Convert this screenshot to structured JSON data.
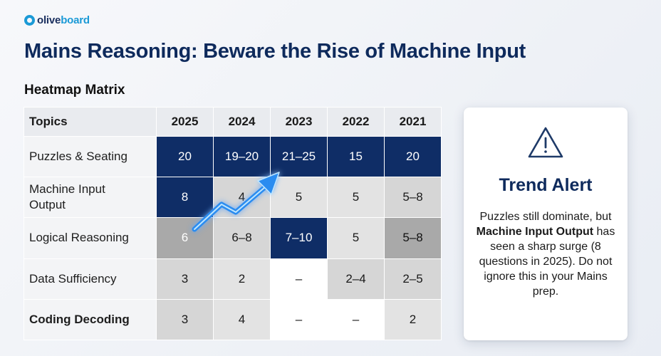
{
  "brand": {
    "name_part1": "olive",
    "name_part2": "board"
  },
  "title": "Mains Reasoning: Beware the Rise of Machine Input",
  "subtitle": "Heatmap Matrix",
  "chart_data": {
    "type": "table",
    "columns": [
      "Topics",
      "2025",
      "2024",
      "2023",
      "2022",
      "2021"
    ],
    "rows": [
      {
        "topic": "Puzzles & Seating",
        "values": [
          "20",
          "19–20",
          "21–25",
          "15",
          "20"
        ]
      },
      {
        "topic": "Machine Input Output",
        "values": [
          "8",
          "4",
          "5",
          "5",
          "5–8"
        ]
      },
      {
        "topic": "Logical Reasoning",
        "values": [
          "6",
          "6–8",
          "7–10",
          "5",
          "5–8"
        ]
      },
      {
        "topic": "Data Sufficiency",
        "values": [
          "3",
          "2",
          "–",
          "2–4",
          "2–5"
        ]
      },
      {
        "topic": "Coding Decoding",
        "values": [
          "3",
          "4",
          "–",
          "–",
          "2"
        ]
      }
    ],
    "colors": {
      "high": "#0f2d66",
      "medium": "#a9a9a9",
      "low": "#d6d6d6",
      "lowest": "#e3e3e3",
      "none": "#ffffff",
      "trend_arrow": "#2a8cf0"
    }
  },
  "alert": {
    "icon": "warning-triangle-icon",
    "title": "Trend Alert",
    "text_part1": "Puzzles still dominate, but ",
    "text_bold": "Machine Input Output",
    "text_part2": " has seen a sharp surge (8 questions in 2025). Do not ignore this in your Mains prep."
  }
}
